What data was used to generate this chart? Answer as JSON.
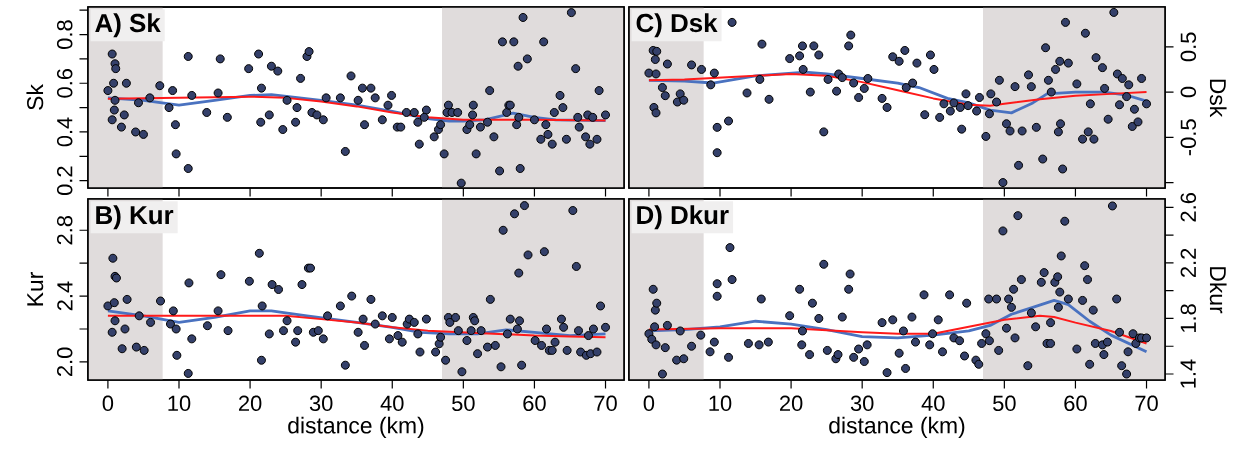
{
  "chart_data": [
    {
      "type": "scatter",
      "title": "A) Sk",
      "ylabel": "Sk",
      "xlim": [
        -2.8,
        72.6
      ],
      "ylim": [
        0.17,
        0.913
      ],
      "xticks": [
        0,
        10,
        20,
        30,
        40,
        50,
        60,
        70
      ],
      "yticks": [
        0.2,
        {
          "value": 0.3,
          "label": null
        },
        0.4,
        {
          "value": 0.5,
          "label": null
        },
        0.6,
        {
          "value": 0.7,
          "label": null
        },
        0.8,
        {
          "value": 0.9,
          "label": null
        }
      ],
      "tick_labels": "y",
      "marker": "circle",
      "line_style": "solid",
      "bands": [
        {
          "axis": "x",
          "from": -2.8,
          "to": 7.7,
          "color": "#e0dcdc"
        },
        {
          "axis": "x",
          "from": 47,
          "to": 72.6,
          "color": "#e0dcdc"
        }
      ],
      "series": [
        {
          "color": "#34406a",
          "x": [
            0,
            0.6,
            1.0,
            1.1,
            0.8,
            1.0,
            0.9,
            0.6,
            1.9,
            2.3,
            2.6,
            3.9,
            5.0,
            4.3,
            5.9,
            7.3,
            8.6,
            9.1,
            9.5,
            9.6,
            11.3,
            11.3,
            11.8,
            13.9,
            15.5,
            15.8,
            16.8,
            19.8,
            21.2,
            21.6,
            21.5,
            22.7,
            23.0,
            23.9,
            24.6,
            25.2,
            26.4,
            26.6,
            27.1,
            28.0,
            28.3,
            28.7,
            29.4,
            30.3,
            30.7,
            32.7,
            33.4,
            34.2,
            35.2,
            35.8,
            36.1,
            37.0,
            37.6,
            38.6,
            39.4,
            39.9,
            40.7,
            41.2,
            42.0,
            43.1,
            43.6,
            43.8,
            44.8,
            44.5,
            45.9,
            46.5,
            46.8,
            47.3,
            47.9,
            47.7,
            48.4,
            49.2,
            49.7,
            50.5,
            50.9,
            51.3,
            51.4,
            51.8,
            52.4,
            53.4,
            53.7,
            54.3,
            55.1,
            55.5,
            56.1,
            56.4,
            56.6,
            57.1,
            57.5,
            57.7,
            57.8,
            58.0,
            58.4,
            59.0,
            60.0,
            60.9,
            61.3,
            61.6,
            61.9,
            62.5,
            62.8,
            63.6,
            64.0,
            64.5,
            65.2,
            65.8,
            66.1,
            66.3,
            67.2,
            67.5,
            67.8,
            68.2,
            68.8,
            69.1,
            70.0
          ],
          "values": [
            0.57,
            0.72,
            0.68,
            0.66,
            0.6,
            0.53,
            0.49,
            0.45,
            0.42,
            0.47,
            0.6,
            0.4,
            0.39,
            0.52,
            0.54,
            0.59,
            0.5,
            0.57,
            0.43,
            0.31,
            0.71,
            0.25,
            0.55,
            0.48,
            0.56,
            0.7,
            0.46,
            0.66,
            0.72,
            0.58,
            0.44,
            0.47,
            0.67,
            0.65,
            0.41,
            0.53,
            0.44,
            0.5,
            0.62,
            0.71,
            0.73,
            0.48,
            0.47,
            0.45,
            0.54,
            0.54,
            0.32,
            0.63,
            0.53,
            0.58,
            0.43,
            0.58,
            0.54,
            0.45,
            0.51,
            0.55,
            0.42,
            0.42,
            0.48,
            0.48,
            0.44,
            0.35,
            0.49,
            0.46,
            0.38,
            0.41,
            0.43,
            0.31,
            0.51,
            0.48,
            0.48,
            0.48,
            0.19,
            0.41,
            0.43,
            0.47,
            0.51,
            0.31,
            0.42,
            0.44,
            0.57,
            0.38,
            0.24,
            0.77,
            0.48,
            0.51,
            0.51,
            0.77,
            0.43,
            0.67,
            0.46,
            0.25,
            0.87,
            0.7,
            0.45,
            0.37,
            0.77,
            0.43,
            0.39,
            0.35,
            0.48,
            0.55,
            0.5,
            0.37,
            0.89,
            0.66,
            0.46,
            0.42,
            0.38,
            0.47,
            0.35,
            0.46,
            0.37,
            0.57,
            0.47
          ]
        },
        {
          "type": "line",
          "color": "#4a72c0",
          "marker": "none",
          "x": [
            0,
            5,
            10,
            15,
            20,
            23,
            30,
            35,
            40,
            45,
            48,
            50,
            53,
            57,
            60,
            63,
            70
          ],
          "values": [
            0.54,
            0.53,
            0.51,
            0.53,
            0.55,
            0.553,
            0.53,
            0.51,
            0.485,
            0.455,
            0.445,
            0.445,
            0.45,
            0.477,
            0.46,
            0.45,
            0.447
          ]
        },
        {
          "type": "line",
          "color": "#ff1a1a",
          "marker": "none",
          "x": [
            0,
            10,
            20,
            25,
            30,
            35,
            40,
            45,
            50,
            55,
            60,
            70
          ],
          "values": [
            0.536,
            0.54,
            0.545,
            0.54,
            0.525,
            0.505,
            0.48,
            0.46,
            0.45,
            0.45,
            0.45,
            0.447
          ]
        }
      ]
    },
    {
      "type": "scatter",
      "title": "C) Dsk",
      "y2label": "Dsk",
      "xlim": [
        -2.8,
        72.6
      ],
      "y2lim": [
        -1.06,
        0.94
      ],
      "xticks": [
        0,
        10,
        20,
        30,
        40,
        50,
        60,
        70
      ],
      "y2ticks": [
        {
          "value": -1,
          "label": null
        },
        -0.5,
        0,
        0.5
      ],
      "tick_labels": "y",
      "marker": "circle",
      "line_style": "solid",
      "bands": [
        {
          "axis": "x",
          "from": -2.8,
          "to": 7.7,
          "color": "#e0dcdc"
        },
        {
          "axis": "x",
          "from": 47,
          "to": 72.6,
          "color": "#e0dcdc"
        }
      ],
      "series": [
        {
          "axis": "y2",
          "color": "#34406a",
          "x": [
            0,
            0.6,
            1.1,
            0.9,
            1.0,
            0.7,
            1.0,
            1.9,
            2.3,
            2.6,
            4.0,
            4.4,
            4.9,
            6.0,
            7.4,
            8.7,
            9.2,
            9.6,
            9.6,
            11.2,
            11.7,
            13.8,
            15.6,
            15.9,
            16.9,
            19.8,
            21.2,
            21.6,
            21.7,
            22.7,
            23.2,
            23.9,
            24.6,
            25.2,
            26.4,
            26.7,
            27.2,
            28.1,
            28.4,
            28.8,
            29.5,
            30.3,
            30.8,
            32.8,
            33.5,
            34.3,
            35.2,
            36.0,
            36.2,
            37.1,
            37.7,
            38.8,
            39.6,
            40.1,
            40.9,
            41.5,
            42.4,
            42.9,
            43.8,
            44.0,
            44.6,
            44.9,
            46.1,
            46.5,
            47.4,
            47.9,
            48.1,
            48.9,
            49.3,
            49.8,
            50.3,
            50.8,
            51.5,
            52.0,
            52.5,
            53.4,
            53.8,
            54.5,
            55.4,
            55.8,
            56.2,
            56.6,
            57.2,
            57.6,
            57.8,
            57.9,
            58.2,
            58.6,
            59.0,
            60.2,
            61.0,
            61.4,
            61.8,
            62.1,
            62.6,
            62.9,
            63.8,
            64.1,
            64.6,
            65.4,
            65.9,
            66.2,
            66.6,
            67.2,
            67.5,
            68.0,
            68.3,
            68.8,
            69.3,
            70.0
          ],
          "values": [
            0.21,
            0.46,
            0.45,
            0.36,
            0.2,
            -0.17,
            -0.23,
            0.05,
            -0.04,
            0.31,
            -0.11,
            -0.02,
            -0.09,
            0.3,
            0.25,
            0.08,
            0.21,
            -0.39,
            -0.67,
            -0.32,
            0.77,
            -0.01,
            0.14,
            0.53,
            -0.08,
            0.37,
            0.4,
            0.51,
            0.25,
            0.0,
            0.51,
            0.41,
            -0.44,
            0.14,
            0.01,
            0.2,
            0.16,
            0.51,
            0.63,
            0.1,
            -0.06,
            0.04,
            0.15,
            -0.07,
            -0.17,
            0.39,
            0.34,
            0.46,
            0.05,
            0.1,
            0.32,
            -0.25,
            0.41,
            0.25,
            -0.28,
            -0.13,
            -0.21,
            -0.12,
            -0.17,
            -0.41,
            -0.02,
            -0.15,
            -0.21,
            -0.06,
            -0.49,
            -0.24,
            -0.02,
            -0.11,
            0.13,
            -1.0,
            -0.35,
            -0.43,
            0.06,
            -0.81,
            -0.43,
            0.19,
            0.06,
            -0.39,
            -0.74,
            0.49,
            0.13,
            0.0,
            0.25,
            -0.44,
            0.34,
            -0.35,
            -0.85,
            0.77,
            0.32,
            0.09,
            -0.52,
            0.65,
            -0.44,
            -0.13,
            -0.52,
            0.38,
            0.27,
            0.04,
            -0.3,
            0.88,
            0.2,
            -0.14,
            0.15,
            -0.05,
            0.08,
            -0.38,
            -0.19,
            -0.33,
            0.15,
            -0.13
          ]
        },
        {
          "type": "line",
          "axis": "y2",
          "color": "#4a72c0",
          "marker": "none",
          "x": [
            0,
            5,
            9,
            15,
            22,
            25,
            30,
            35,
            38,
            42,
            45,
            48,
            51,
            54,
            56,
            60,
            64,
            67,
            70
          ],
          "values": [
            0.13,
            0.12,
            0.1,
            0.18,
            0.22,
            0.2,
            0.15,
            0.1,
            0.05,
            -0.07,
            -0.12,
            -0.2,
            -0.23,
            -0.12,
            -0.02,
            0.0,
            0.0,
            -0.03,
            -0.1
          ]
        },
        {
          "type": "line",
          "axis": "y2",
          "color": "#ff1a1a",
          "marker": "none",
          "x": [
            0,
            5,
            10,
            15,
            20,
            25,
            30,
            35,
            40,
            45,
            48,
            50,
            55,
            60,
            65,
            70
          ],
          "values": [
            0.13,
            0.14,
            0.16,
            0.18,
            0.2,
            0.18,
            0.11,
            0.02,
            -0.07,
            -0.14,
            -0.15,
            -0.13,
            -0.08,
            -0.04,
            -0.02,
            0.0
          ]
        }
      ]
    },
    {
      "type": "scatter",
      "title": "B) Kur",
      "ylabel": "Kur",
      "xlabel": "distance (km)",
      "xlim": [
        -2.8,
        72.6
      ],
      "ylim": [
        1.89,
        2.99
      ],
      "xticks": [
        0,
        10,
        20,
        30,
        40,
        50,
        60,
        70
      ],
      "yticks": [
        {
          "value": 2,
          "label": "2.0"
        },
        {
          "value": 2.2,
          "label": null
        },
        2.4,
        {
          "value": 2.6,
          "label": null
        },
        2.8
      ],
      "marker": "circle",
      "line_style": "solid",
      "bands": [
        {
          "axis": "x",
          "from": -2.8,
          "to": 7.7,
          "color": "#e0dcdc"
        },
        {
          "axis": "x",
          "from": 47,
          "to": 72.6,
          "color": "#e0dcdc"
        }
      ],
      "series": [
        {
          "color": "#34406a",
          "x": [
            0,
            0.7,
            1.0,
            1.2,
            0.9,
            1.0,
            0.6,
            2.0,
            2.4,
            2.7,
            4.0,
            4.4,
            5.1,
            6.0,
            7.4,
            8.8,
            9.2,
            9.6,
            9.7,
            11.4,
            11.3,
            11.8,
            14.0,
            15.5,
            15.9,
            16.9,
            19.9,
            21.3,
            21.7,
            21.6,
            22.7,
            23.1,
            24.0,
            24.7,
            25.2,
            26.4,
            26.7,
            27.3,
            28.2,
            28.5,
            28.9,
            29.6,
            30.3,
            30.9,
            32.7,
            33.4,
            34.3,
            35.2,
            35.9,
            36.1,
            37.0,
            37.6,
            38.6,
            39.6,
            40.0,
            40.8,
            41.4,
            42.1,
            42.4,
            43.1,
            43.6,
            43.9,
            44.8,
            46.1,
            46.6,
            46.8,
            47.5,
            47.9,
            48.1,
            48.9,
            49.3,
            49.8,
            50.5,
            51.1,
            51.4,
            51.6,
            52.0,
            52.5,
            53.4,
            53.8,
            54.5,
            55.3,
            55.6,
            56.2,
            56.6,
            57.2,
            57.6,
            57.8,
            57.9,
            58.2,
            58.6,
            59.1,
            60.1,
            61.0,
            61.4,
            61.7,
            62.1,
            62.5,
            62.9,
            63.8,
            64.1,
            64.6,
            65.4,
            65.9,
            66.2,
            66.5,
            67.3,
            67.6,
            67.9,
            68.3,
            68.8,
            69.3,
            70.0
          ],
          "values": [
            2.34,
            2.63,
            2.52,
            2.51,
            2.36,
            2.25,
            2.18,
            2.08,
            2.2,
            2.38,
            2.09,
            2.28,
            2.07,
            2.24,
            2.37,
            2.23,
            2.31,
            2.2,
            2.04,
            2.48,
            1.93,
            2.14,
            2.22,
            2.31,
            2.53,
            2.19,
            2.49,
            2.66,
            2.34,
            2.01,
            2.17,
            2.47,
            2.44,
            2.19,
            2.25,
            2.12,
            2.19,
            2.47,
            2.57,
            2.57,
            2.18,
            2.19,
            2.14,
            2.28,
            2.34,
            1.98,
            2.4,
            2.18,
            2.26,
            2.1,
            2.38,
            2.23,
            2.28,
            2.14,
            2.27,
            2.16,
            2.12,
            2.23,
            2.26,
            2.24,
            2.17,
            2.06,
            2.26,
            2.06,
            2.11,
            2.15,
            2.01,
            2.27,
            2.24,
            2.27,
            2.19,
            1.94,
            2.13,
            2.19,
            2.27,
            2.25,
            2.05,
            2.19,
            2.09,
            2.38,
            2.1,
            1.97,
            2.8,
            2.17,
            2.26,
            2.9,
            2.2,
            2.54,
            2.25,
            1.98,
            2.95,
            2.65,
            2.13,
            2.1,
            2.67,
            2.2,
            2.07,
            2.07,
            2.12,
            2.26,
            2.21,
            2.07,
            2.92,
            2.58,
            2.19,
            2.06,
            2.04,
            2.16,
            2.05,
            2.2,
            2.06,
            2.34,
            2.21
          ]
        },
        {
          "type": "line",
          "color": "#4a72c0",
          "marker": "none",
          "x": [
            0,
            5,
            10,
            15,
            20,
            23,
            28,
            35,
            40,
            44,
            48,
            52,
            56,
            60,
            65,
            70
          ],
          "values": [
            2.31,
            2.28,
            2.24,
            2.27,
            2.31,
            2.31,
            2.28,
            2.24,
            2.21,
            2.18,
            2.17,
            2.17,
            2.195,
            2.18,
            2.16,
            2.17
          ]
        },
        {
          "type": "line",
          "color": "#ff1a1a",
          "marker": "none",
          "x": [
            0,
            10,
            20,
            25,
            30,
            35,
            40,
            45,
            50,
            55,
            60,
            65,
            70
          ],
          "values": [
            2.28,
            2.28,
            2.28,
            2.28,
            2.26,
            2.24,
            2.21,
            2.19,
            2.18,
            2.17,
            2.16,
            2.155,
            2.15
          ]
        }
      ]
    },
    {
      "type": "scatter",
      "title": "D) Dkur",
      "y2label": "Dkur",
      "xlabel": "distance (km)",
      "xlim": [
        -2.8,
        72.6
      ],
      "y2lim": [
        1.357,
        2.66
      ],
      "xticks": [
        0,
        10,
        20,
        30,
        40,
        50,
        60,
        70
      ],
      "y2ticks": [
        1.4,
        {
          "value": 1.6,
          "label": null
        },
        1.8,
        {
          "value": 2.0,
          "label": null
        },
        2.2,
        {
          "value": 2.4,
          "label": null
        },
        2.6
      ],
      "marker": "circle",
      "line_style": "solid",
      "bands": [
        {
          "axis": "x",
          "from": -2.8,
          "to": 7.7,
          "color": "#e0dcdc"
        },
        {
          "axis": "x",
          "from": 47,
          "to": 72.6,
          "color": "#e0dcdc"
        }
      ],
      "series": [
        {
          "axis": "y2",
          "color": "#34406a",
          "x": [
            0,
            0.6,
            0.9,
            1.1,
            0.8,
            0.4,
            1.0,
            1.9,
            2.3,
            2.6,
            3.9,
            4.4,
            4.9,
            6.0,
            7.3,
            8.6,
            9.2,
            9.6,
            9.6,
            11.2,
            11.4,
            11.7,
            14.0,
            15.5,
            15.8,
            16.8,
            19.8,
            21.2,
            21.6,
            21.5,
            22.6,
            23.0,
            23.9,
            24.6,
            25.1,
            26.3,
            26.6,
            27.2,
            28.1,
            28.3,
            28.8,
            29.5,
            30.3,
            30.7,
            32.8,
            33.5,
            34.3,
            35.2,
            35.8,
            36.1,
            37.0,
            37.5,
            38.7,
            39.5,
            39.9,
            40.7,
            41.3,
            42.3,
            42.9,
            43.7,
            44.4,
            44.7,
            46.0,
            46.4,
            46.8,
            47.4,
            47.8,
            47.9,
            48.9,
            49.2,
            49.8,
            50.3,
            50.6,
            51.0,
            51.3,
            51.5,
            51.9,
            52.4,
            53.3,
            53.8,
            54.4,
            55.2,
            55.6,
            56.0,
            56.5,
            56.5,
            57.1,
            57.5,
            57.6,
            57.8,
            58.0,
            58.5,
            59.0,
            60.2,
            61.0,
            61.3,
            61.7,
            62.0,
            62.5,
            62.8,
            63.8,
            64.0,
            64.5,
            65.2,
            65.8,
            66.2,
            66.5,
            67.2,
            67.4,
            68.1,
            68.5,
            69.0,
            69.3,
            70.0
          ],
          "values": [
            1.69,
            2.01,
            1.86,
            1.91,
            1.74,
            1.65,
            1.61,
            1.4,
            1.59,
            1.75,
            1.5,
            1.71,
            1.51,
            1.6,
            1.68,
            1.56,
            1.63,
            1.96,
            2.05,
            1.52,
            2.31,
            2.08,
            1.62,
            1.61,
            1.94,
            1.63,
            1.82,
            2.01,
            1.71,
            1.61,
            1.54,
            1.91,
            1.8,
            2.19,
            1.57,
            1.51,
            1.54,
            1.81,
            2.01,
            2.12,
            1.52,
            1.58,
            1.49,
            1.61,
            1.77,
            1.41,
            1.79,
            1.55,
            1.71,
            1.44,
            1.81,
            1.63,
            1.97,
            1.61,
            1.69,
            1.79,
            1.56,
            1.97,
            1.66,
            1.64,
            1.53,
            1.91,
            1.5,
            1.47,
            1.62,
            1.69,
            1.94,
            1.64,
            1.94,
            1.57,
            2.43,
            1.73,
            1.94,
            1.88,
            2.01,
            1.66,
            2.54,
            2.08,
            1.46,
            1.84,
            1.74,
            2.06,
            2.13,
            1.62,
            1.62,
            1.77,
            2.06,
            2.1,
            1.88,
            1.99,
            2.25,
            2.5,
            1.94,
            1.58,
            1.93,
            2.18,
            2.08,
            1.47,
            1.86,
            1.62,
            1.61,
            1.54,
            1.63,
            2.61,
            1.94,
            1.7,
            1.46,
            1.4,
            1.56,
            1.69,
            1.62,
            1.66,
            1.66,
            1.66
          ]
        },
        {
          "type": "line",
          "axis": "y2",
          "color": "#4a72c0",
          "marker": "none",
          "x": [
            0,
            5,
            10,
            15,
            20,
            25,
            30,
            35,
            40,
            45,
            48,
            51,
            54,
            57,
            59,
            62,
            65,
            70
          ],
          "values": [
            1.71,
            1.72,
            1.74,
            1.78,
            1.76,
            1.72,
            1.67,
            1.66,
            1.68,
            1.71,
            1.75,
            1.83,
            1.88,
            1.93,
            1.9,
            1.78,
            1.68,
            1.56
          ]
        },
        {
          "type": "line",
          "axis": "y2",
          "color": "#ff1a1a",
          "marker": "none",
          "x": [
            0,
            10,
            20,
            30,
            35,
            40,
            45,
            50,
            55,
            57,
            60,
            65,
            70
          ],
          "values": [
            1.72,
            1.73,
            1.73,
            1.7,
            1.69,
            1.69,
            1.74,
            1.79,
            1.82,
            1.81,
            1.77,
            1.71,
            1.62
          ]
        }
      ]
    }
  ]
}
